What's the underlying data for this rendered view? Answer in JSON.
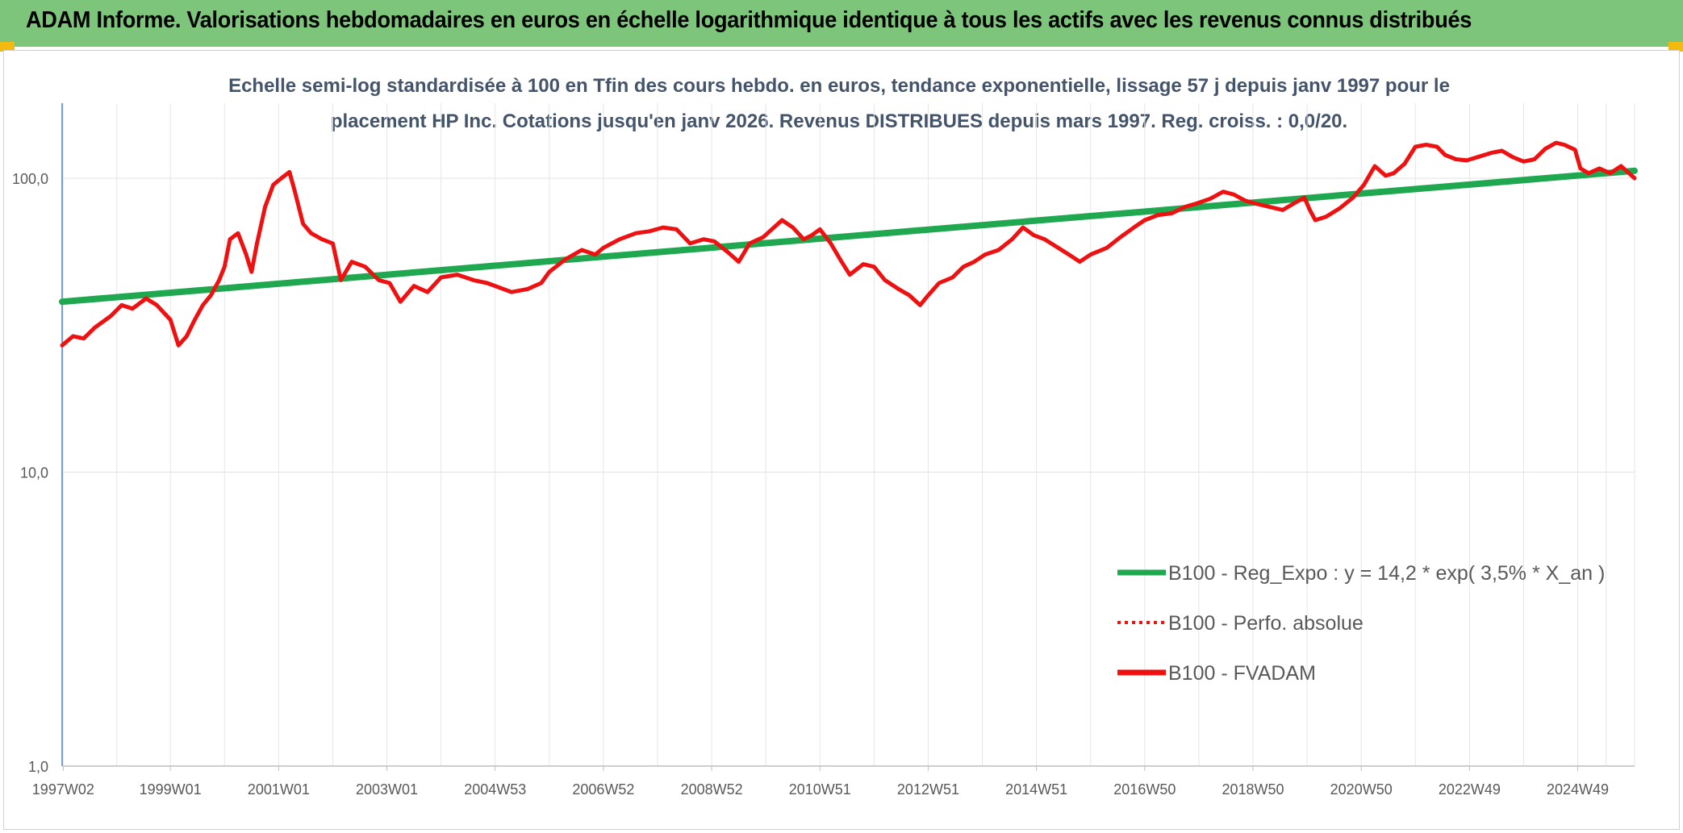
{
  "header": {
    "title": "ADAM Informe. Valorisations hebdomadaires en euros en échelle logarithmique identique à tous les actifs avec les revenus connus distribués"
  },
  "colors": {
    "header_bg": "#7cc57a",
    "corner": "#f2b90f",
    "trend": "#1fa84f",
    "fvadam": "#ee1111",
    "grid": "#e6e6e6",
    "axis": "#4f81bd",
    "subtitle": "#44546a"
  },
  "chart_data": {
    "type": "line",
    "subtitle_lines": [
      "Echelle semi-log standardisée à 100 en Tfin des cours hebdo. en euros, tendance exponentielle, lissage 57 j depuis janv 1997 pour le",
      "placement HP Inc. Cotations jusqu'en janv 2026. Revenus DISTRIBUES depuis mars 1997. Reg. croiss. : 0,0/20."
    ],
    "y_scale": "log",
    "ylim": [
      1,
      180
    ],
    "y_ticks": [
      {
        "value": 1,
        "label": "1,0"
      },
      {
        "value": 10,
        "label": "10,0"
      },
      {
        "value": 100,
        "label": "100,0"
      }
    ],
    "xlim": [
      1997.0,
      2026.05
    ],
    "x_ticks": [
      {
        "value": 1997.02,
        "label": "1997W02"
      },
      {
        "value": 1999.0,
        "label": "1999W01"
      },
      {
        "value": 2001.0,
        "label": "2001W01"
      },
      {
        "value": 2003.0,
        "label": "2003W01"
      },
      {
        "value": 2005.0,
        "label": "2004W53"
      },
      {
        "value": 2007.0,
        "label": "2006W52"
      },
      {
        "value": 2009.0,
        "label": "2008W52"
      },
      {
        "value": 2011.0,
        "label": "2010W51"
      },
      {
        "value": 2013.0,
        "label": "2012W51"
      },
      {
        "value": 2015.0,
        "label": "2014W51"
      },
      {
        "value": 2017.0,
        "label": "2016W50"
      },
      {
        "value": 2019.0,
        "label": "2018W50"
      },
      {
        "value": 2021.0,
        "label": "2020W50"
      },
      {
        "value": 2023.0,
        "label": "2022W49"
      },
      {
        "value": 2025.0,
        "label": "2024W49"
      }
    ],
    "grid": true,
    "legend_position": "bottom-right",
    "legend": [
      {
        "label": "B100 - Reg_Expo : y = 14,2 * exp( 3,5% *  X_an )",
        "style": "solid",
        "color": "#1fa84f"
      },
      {
        "label": "B100 - Perfo. absolue",
        "style": "dotted",
        "color": "#ee1111"
      },
      {
        "label": "B100 - FVADAM",
        "style": "solid",
        "color": "#ee1111"
      }
    ],
    "series": [
      {
        "key": "reg_expo",
        "color": "#1fa84f",
        "points": [
          [
            1997.0,
            38
          ],
          [
            2026.05,
            106
          ]
        ]
      },
      {
        "key": "fvadam",
        "color": "#ee1111",
        "points": [
          [
            1997.0,
            27
          ],
          [
            1997.2,
            29
          ],
          [
            1997.4,
            28.5
          ],
          [
            1997.6,
            31
          ],
          [
            1997.9,
            34
          ],
          [
            1998.1,
            37
          ],
          [
            1998.3,
            36
          ],
          [
            1998.55,
            39
          ],
          [
            1998.75,
            37
          ],
          [
            1999.0,
            33
          ],
          [
            1999.15,
            27
          ],
          [
            1999.3,
            29
          ],
          [
            1999.45,
            33
          ],
          [
            1999.6,
            37
          ],
          [
            1999.75,
            40
          ],
          [
            1999.9,
            45
          ],
          [
            2000.0,
            50
          ],
          [
            2000.1,
            62
          ],
          [
            2000.25,
            65
          ],
          [
            2000.4,
            55
          ],
          [
            2000.5,
            48
          ],
          [
            2000.6,
            60
          ],
          [
            2000.75,
            80
          ],
          [
            2000.9,
            95
          ],
          [
            2001.05,
            100
          ],
          [
            2001.2,
            105
          ],
          [
            2001.3,
            90
          ],
          [
            2001.45,
            70
          ],
          [
            2001.6,
            65
          ],
          [
            2001.8,
            62
          ],
          [
            2002.0,
            60
          ],
          [
            2002.15,
            45
          ],
          [
            2002.35,
            52
          ],
          [
            2002.6,
            50
          ],
          [
            2002.85,
            45
          ],
          [
            2003.05,
            44
          ],
          [
            2003.25,
            38
          ],
          [
            2003.5,
            43
          ],
          [
            2003.75,
            41
          ],
          [
            2004.0,
            46
          ],
          [
            2004.3,
            47
          ],
          [
            2004.6,
            45
          ],
          [
            2004.85,
            44
          ],
          [
            2005.0,
            43
          ],
          [
            2005.3,
            41
          ],
          [
            2005.6,
            42
          ],
          [
            2005.85,
            44
          ],
          [
            2006.0,
            48
          ],
          [
            2006.3,
            53
          ],
          [
            2006.6,
            57
          ],
          [
            2006.85,
            55
          ],
          [
            2007.0,
            58
          ],
          [
            2007.3,
            62
          ],
          [
            2007.6,
            65
          ],
          [
            2007.85,
            66
          ],
          [
            2008.1,
            68
          ],
          [
            2008.35,
            67
          ],
          [
            2008.6,
            60
          ],
          [
            2008.85,
            62
          ],
          [
            2009.05,
            61
          ],
          [
            2009.3,
            56
          ],
          [
            2009.5,
            52
          ],
          [
            2009.7,
            60
          ],
          [
            2009.95,
            63
          ],
          [
            2010.15,
            68
          ],
          [
            2010.3,
            72
          ],
          [
            2010.5,
            68
          ],
          [
            2010.7,
            62
          ],
          [
            2010.85,
            64
          ],
          [
            2011.0,
            67
          ],
          [
            2011.2,
            60
          ],
          [
            2011.4,
            52
          ],
          [
            2011.55,
            47
          ],
          [
            2011.8,
            51
          ],
          [
            2012.0,
            50
          ],
          [
            2012.2,
            45
          ],
          [
            2012.45,
            42
          ],
          [
            2012.65,
            40
          ],
          [
            2012.85,
            37
          ],
          [
            2013.0,
            40
          ],
          [
            2013.2,
            44
          ],
          [
            2013.45,
            46
          ],
          [
            2013.65,
            50
          ],
          [
            2013.85,
            52
          ],
          [
            2014.05,
            55
          ],
          [
            2014.3,
            57
          ],
          [
            2014.55,
            62
          ],
          [
            2014.75,
            68
          ],
          [
            2014.95,
            64
          ],
          [
            2015.15,
            62
          ],
          [
            2015.4,
            58
          ],
          [
            2015.6,
            55
          ],
          [
            2015.8,
            52
          ],
          [
            2016.0,
            55
          ],
          [
            2016.3,
            58
          ],
          [
            2016.55,
            63
          ],
          [
            2016.8,
            68
          ],
          [
            2017.0,
            72
          ],
          [
            2017.25,
            75
          ],
          [
            2017.5,
            76
          ],
          [
            2017.75,
            80
          ],
          [
            2017.95,
            82
          ],
          [
            2018.2,
            85
          ],
          [
            2018.45,
            90
          ],
          [
            2018.65,
            88
          ],
          [
            2018.85,
            84
          ],
          [
            2019.05,
            82
          ],
          [
            2019.3,
            80
          ],
          [
            2019.55,
            78
          ],
          [
            2019.75,
            82
          ],
          [
            2019.95,
            86
          ],
          [
            2020.05,
            78
          ],
          [
            2020.15,
            72
          ],
          [
            2020.35,
            74
          ],
          [
            2020.6,
            79
          ],
          [
            2020.85,
            86
          ],
          [
            2021.05,
            95
          ],
          [
            2021.25,
            110
          ],
          [
            2021.45,
            102
          ],
          [
            2021.6,
            104
          ],
          [
            2021.8,
            112
          ],
          [
            2022.0,
            128
          ],
          [
            2022.2,
            130
          ],
          [
            2022.4,
            128
          ],
          [
            2022.55,
            120
          ],
          [
            2022.75,
            116
          ],
          [
            2022.95,
            115
          ],
          [
            2023.15,
            118
          ],
          [
            2023.4,
            122
          ],
          [
            2023.6,
            124
          ],
          [
            2023.8,
            118
          ],
          [
            2024.0,
            114
          ],
          [
            2024.2,
            116
          ],
          [
            2024.4,
            126
          ],
          [
            2024.6,
            132
          ],
          [
            2024.75,
            130
          ],
          [
            2024.95,
            125
          ],
          [
            2025.05,
            108
          ],
          [
            2025.2,
            104
          ],
          [
            2025.4,
            108
          ],
          [
            2025.6,
            104
          ],
          [
            2025.8,
            110
          ],
          [
            2026.05,
            100
          ]
        ]
      }
    ]
  }
}
